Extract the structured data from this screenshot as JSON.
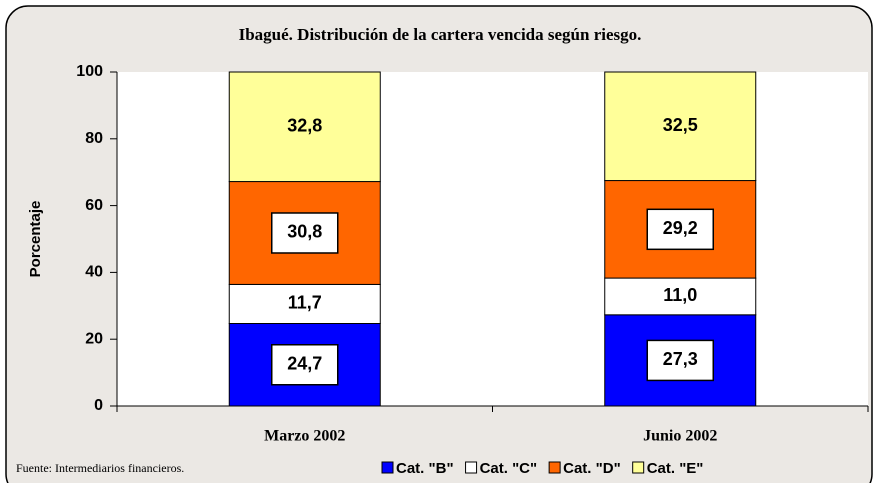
{
  "chart_data": {
    "type": "stacked_bar",
    "title": "Ibagué. Distribución de la cartera vencida según riesgo.",
    "y_label": "Porcentaje",
    "source": "Fuente: Intermediarios financieros.",
    "categories": [
      "Marzo 2002",
      "Junio 2002"
    ],
    "series": [
      {
        "name": "Cat. \"B\"",
        "color": "#0000ff",
        "values": [
          24.7,
          27.3
        ],
        "value_labels": [
          "24,7",
          "27,3"
        ]
      },
      {
        "name": "Cat. \"C\"",
        "color": "#ffffff",
        "values": [
          11.7,
          11.0
        ],
        "value_labels": [
          "11,7",
          "11,0"
        ]
      },
      {
        "name": "Cat. \"D\"",
        "color": "#ff6600",
        "values": [
          30.8,
          29.2
        ],
        "value_labels": [
          "30,8",
          "29,2"
        ]
      },
      {
        "name": "Cat. \"E\"",
        "color": "#ffff99",
        "values": [
          32.8,
          32.5
        ],
        "value_labels": [
          "32,8",
          "32,5"
        ]
      }
    ],
    "ylim": [
      0,
      100
    ],
    "yticks": [
      0,
      20,
      40,
      60,
      80,
      100
    ],
    "legend": "bottom"
  }
}
